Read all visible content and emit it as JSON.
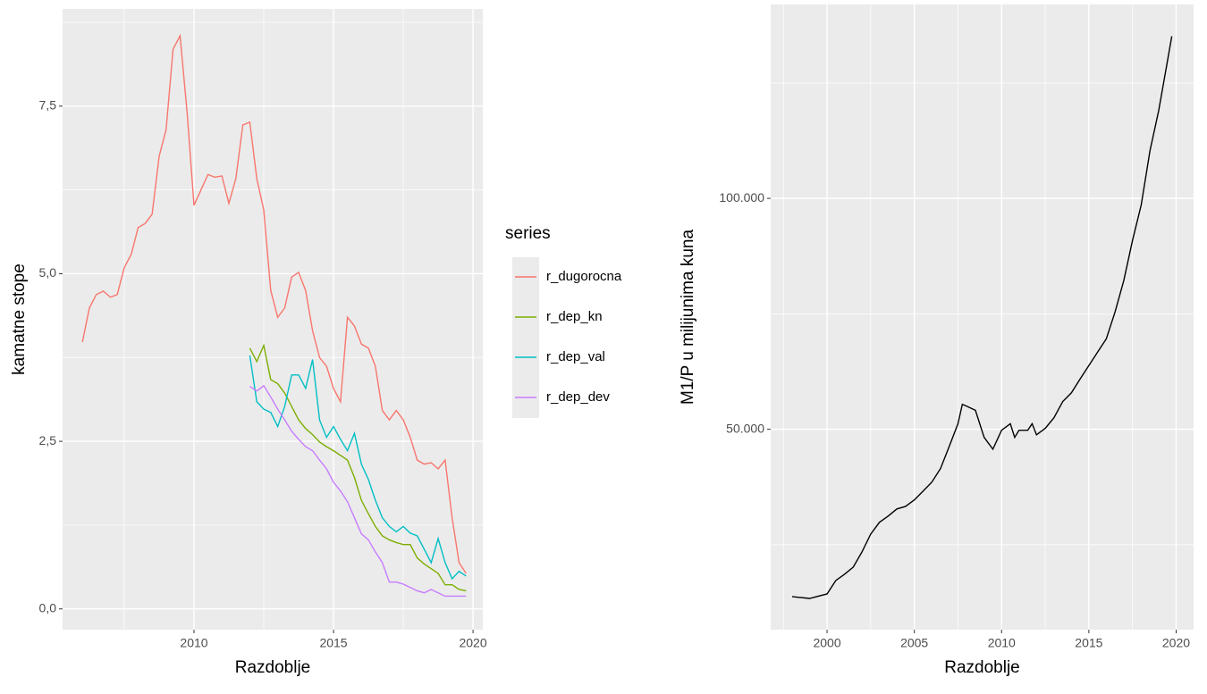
{
  "chart_data": [
    {
      "type": "line",
      "x_label": "Razdoblje",
      "y_label": "kamatne stope",
      "legend_title": "series",
      "legend": "right",
      "xlim": [
        2005.29,
        2020.35
      ],
      "ylim": [
        -0.31,
        8.95
      ],
      "xticks": [
        2010,
        2015,
        2020
      ],
      "xminorticks": [
        2007.5,
        2012.5,
        2017.5
      ],
      "yticks": [
        {
          "value": 0,
          "label": "0,0"
        },
        {
          "value": 2.5,
          "label": "2,5"
        },
        {
          "value": 5,
          "label": "5,0"
        },
        {
          "value": 7.5,
          "label": "7,5"
        }
      ],
      "yminorticks": [
        1.25,
        3.75,
        6.25,
        8.75
      ],
      "grid": true,
      "x": [
        2006.0,
        2006.25,
        2006.5,
        2006.75,
        2007.0,
        2007.25,
        2007.5,
        2007.75,
        2008.0,
        2008.25,
        2008.5,
        2008.75,
        2009.0,
        2009.25,
        2009.5,
        2009.75,
        2010.0,
        2010.25,
        2010.5,
        2010.75,
        2011.0,
        2011.25,
        2011.5,
        2011.75,
        2012.0,
        2012.25,
        2012.5,
        2012.75,
        2013.0,
        2013.25,
        2013.5,
        2013.75,
        2014.0,
        2014.25,
        2014.5,
        2014.75,
        2015.0,
        2015.25,
        2015.5,
        2015.75,
        2016.0,
        2016.25,
        2016.5,
        2016.75,
        2017.0,
        2017.25,
        2017.5,
        2017.75,
        2018.0,
        2018.25,
        2018.5,
        2018.75,
        2019.0,
        2019.25,
        2019.5,
        2019.75
      ],
      "series": [
        {
          "name": "r_dugorocna",
          "color": "#F8766D",
          "values": [
            3.98,
            4.49,
            4.69,
            4.74,
            4.65,
            4.69,
            5.09,
            5.29,
            5.69,
            5.75,
            5.89,
            6.75,
            7.15,
            8.35,
            8.55,
            7.42,
            6.02,
            6.25,
            6.48,
            6.44,
            6.46,
            6.05,
            6.42,
            7.22,
            7.26,
            6.42,
            5.95,
            4.75,
            4.35,
            4.49,
            4.95,
            5.02,
            4.75,
            4.15,
            3.75,
            3.62,
            3.29,
            3.09,
            4.35,
            4.22,
            3.95,
            3.89,
            3.62,
            2.96,
            2.82,
            2.96,
            2.82,
            2.56,
            2.22,
            2.16,
            2.18,
            2.09,
            2.22,
            1.36,
            0.69,
            0.53
          ]
        },
        {
          "name": "r_dep_kn",
          "color": "#7CAE00",
          "values": [
            null,
            null,
            null,
            null,
            null,
            null,
            null,
            null,
            null,
            null,
            null,
            null,
            null,
            null,
            null,
            null,
            null,
            null,
            null,
            null,
            null,
            null,
            null,
            null,
            3.89,
            3.69,
            3.93,
            3.42,
            3.36,
            3.22,
            3.02,
            2.82,
            2.69,
            2.6,
            2.49,
            2.42,
            2.36,
            2.29,
            2.22,
            1.96,
            1.62,
            1.42,
            1.23,
            1.09,
            1.03,
            0.99,
            0.96,
            0.96,
            0.76,
            0.67,
            0.6,
            0.53,
            0.36,
            0.36,
            0.29,
            0.27
          ]
        },
        {
          "name": "r_dep_val",
          "color": "#00BFC4",
          "values": [
            null,
            null,
            null,
            null,
            null,
            null,
            null,
            null,
            null,
            null,
            null,
            null,
            null,
            null,
            null,
            null,
            null,
            null,
            null,
            null,
            null,
            null,
            null,
            null,
            3.78,
            3.09,
            2.98,
            2.93,
            2.72,
            3.02,
            3.49,
            3.49,
            3.29,
            3.72,
            2.82,
            2.56,
            2.72,
            2.53,
            2.36,
            2.62,
            2.16,
            1.93,
            1.62,
            1.36,
            1.23,
            1.15,
            1.23,
            1.13,
            1.09,
            0.89,
            0.69,
            1.05,
            0.69,
            0.45,
            0.56,
            0.49
          ]
        },
        {
          "name": "r_dep_dev",
          "color": "#C77CFF",
          "values": [
            null,
            null,
            null,
            null,
            null,
            null,
            null,
            null,
            null,
            null,
            null,
            null,
            null,
            null,
            null,
            null,
            null,
            null,
            null,
            null,
            null,
            null,
            null,
            null,
            3.32,
            3.25,
            3.33,
            3.16,
            2.98,
            2.82,
            2.65,
            2.53,
            2.42,
            2.36,
            2.22,
            2.09,
            1.89,
            1.76,
            1.6,
            1.36,
            1.12,
            1.03,
            0.85,
            0.69,
            0.4,
            0.4,
            0.37,
            0.32,
            0.27,
            0.24,
            0.29,
            0.24,
            0.19,
            0.19,
            0.19,
            0.19
          ]
        }
      ]
    },
    {
      "type": "line",
      "x_label": "Razdoblje",
      "y_label": "M1/P u milijunima kuna",
      "xlim": [
        1996.77,
        2021.0
      ],
      "ylim": [
        6600,
        142000
      ],
      "xticks": [
        2000,
        2005,
        2010,
        2015,
        2020
      ],
      "xminorticks": [
        1997.5,
        2002.5,
        2007.5,
        2012.5,
        2017.5
      ],
      "yticks": [
        {
          "value": 50000,
          "label": "50.000"
        },
        {
          "value": 100000,
          "label": "100.000"
        }
      ],
      "yminorticks": [
        25000,
        75000,
        125000
      ],
      "grid": true,
      "x": [
        1998.0,
        1999.0,
        2000.0,
        2000.5,
        2001.0,
        2001.5,
        2002.0,
        2002.5,
        2003.0,
        2003.5,
        2004.0,
        2004.5,
        2005.0,
        2005.5,
        2006.0,
        2006.5,
        2007.0,
        2007.5,
        2007.75,
        2008.0,
        2008.5,
        2009.0,
        2009.5,
        2010.0,
        2010.5,
        2010.75,
        2011.0,
        2011.5,
        2011.75,
        2012.0,
        2012.5,
        2013.0,
        2013.5,
        2014.0,
        2014.5,
        2015.0,
        2015.5,
        2016.0,
        2016.5,
        2017.0,
        2017.5,
        2018.0,
        2018.5,
        2019.0,
        2019.5,
        2019.75
      ],
      "series": [
        {
          "color": "#000000",
          "values": [
            13760,
            13370,
            14340,
            17250,
            18600,
            20150,
            23450,
            27300,
            29850,
            31200,
            32750,
            33300,
            34700,
            36600,
            38550,
            41500,
            46300,
            51200,
            55400,
            55000,
            54100,
            48250,
            45700,
            49800,
            51200,
            48250,
            49800,
            49800,
            51200,
            48800,
            50200,
            52500,
            56000,
            57900,
            60900,
            63800,
            66700,
            69600,
            75400,
            82200,
            90900,
            98600,
            110300,
            119000,
            129700,
            135100
          ]
        }
      ]
    }
  ]
}
